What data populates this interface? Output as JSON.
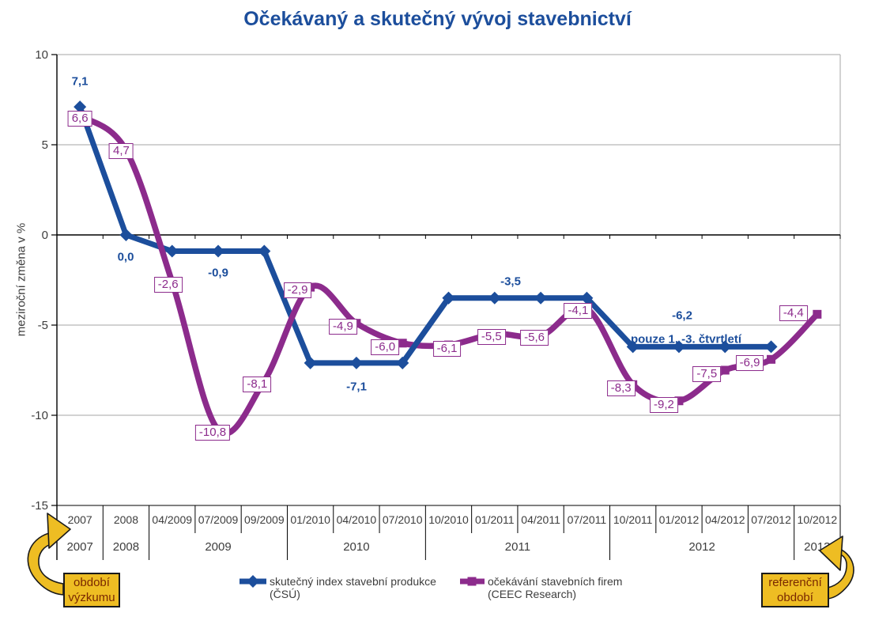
{
  "page": {
    "title": "Očekávaný a skutečný vývoj stavebnictví"
  },
  "chart_data": {
    "type": "line",
    "title": "Očekávaný a skutečný vývoj stavebnictví",
    "ylabel": "meziroční změna v %",
    "ylim": [
      -15,
      10
    ],
    "yticks": [
      10,
      5,
      0,
      -5,
      -10,
      -15
    ],
    "grid": true,
    "legend_position": "bottom",
    "categories": [
      "2007",
      "2008",
      "04/2009",
      "07/2009",
      "09/2009",
      "01/2010",
      "04/2010",
      "07/2010",
      "10/2010",
      "01/2011",
      "04/2011",
      "07/2011",
      "10/2011",
      "01/2012",
      "04/2012",
      "07/2012",
      "10/2012"
    ],
    "year_groups": [
      {
        "label": "2007",
        "span": 1
      },
      {
        "label": "2008",
        "span": 1
      },
      {
        "label": "2009",
        "span": 3
      },
      {
        "label": "2010",
        "span": 3
      },
      {
        "label": "2011",
        "span": 4
      },
      {
        "label": "2012",
        "span": 4
      },
      {
        "label": "2013",
        "span": 1
      }
    ],
    "series": [
      {
        "name": "skutečný index stavební produkce (ČSÚ)",
        "color": "#1c4e9c",
        "marker": "diamond",
        "smooth": false,
        "values": [
          7.1,
          0.0,
          -0.9,
          -0.9,
          -0.9,
          -7.1,
          -7.1,
          -7.1,
          -3.5,
          -3.5,
          -3.5,
          -3.5,
          -6.2,
          -6.2,
          -6.2,
          -6.2,
          null
        ],
        "labels": [
          {
            "text": "7,1",
            "index": 0,
            "position": "above"
          },
          {
            "text": "0,0",
            "index": 1,
            "position": "below"
          },
          {
            "text": "-0,9",
            "index": 3,
            "position": "below"
          },
          {
            "text": "-7,1",
            "index": 6,
            "position": "below"
          },
          {
            "text": "-3,5",
            "index": 9,
            "position": "above"
          },
          {
            "text": "-6,2",
            "index": 13,
            "position": "above"
          }
        ]
      },
      {
        "name": "očekávání stavebních firem (CEEC Research)",
        "color": "#8c2b8c",
        "marker": "square",
        "smooth": true,
        "values": [
          6.6,
          4.7,
          -2.6,
          -10.8,
          -8.1,
          -2.9,
          -4.9,
          -6.0,
          -6.1,
          -5.5,
          -5.6,
          -4.1,
          -8.3,
          -9.2,
          -7.5,
          -6.9,
          -4.4
        ],
        "point_labels": [
          "6,6",
          "4,7",
          "-2,6",
          "-10,8",
          "-8,1",
          "-2,9",
          "-4,9",
          "-6,0",
          "-6,1",
          "-5,5",
          "-5,6",
          "-4,1",
          "-8,3",
          "-9,2",
          "-7,5",
          "-6,9",
          "-4,4"
        ]
      }
    ],
    "annotation": "pouze 1. -3. čtvrtletí"
  },
  "legend": {
    "items": [
      {
        "line1": "skutečný index stavební produkce",
        "line2": "(ČSÚ)",
        "color": "#1c4e9c",
        "marker": "diamond"
      },
      {
        "line1": "očekávání stavebních firem",
        "line2": "(CEEC Research)",
        "color": "#8c2b8c",
        "marker": "square"
      }
    ]
  },
  "callouts": {
    "left": {
      "line1": "období",
      "line2": "výzkumu"
    },
    "right": {
      "line1": "referenční",
      "line2": "období"
    }
  },
  "colors": {
    "title": "#1c4e9c",
    "series_actual": "#1c4e9c",
    "series_expected": "#8c2b8c",
    "grid": "#a6a6a6",
    "axis": "#000000",
    "axis_text": "#3d3d3d",
    "callout_fill": "#eebd23",
    "callout_border": "#1a1a1a",
    "callout_text": "#7a2800",
    "label_box_bg": "#ffffff"
  }
}
